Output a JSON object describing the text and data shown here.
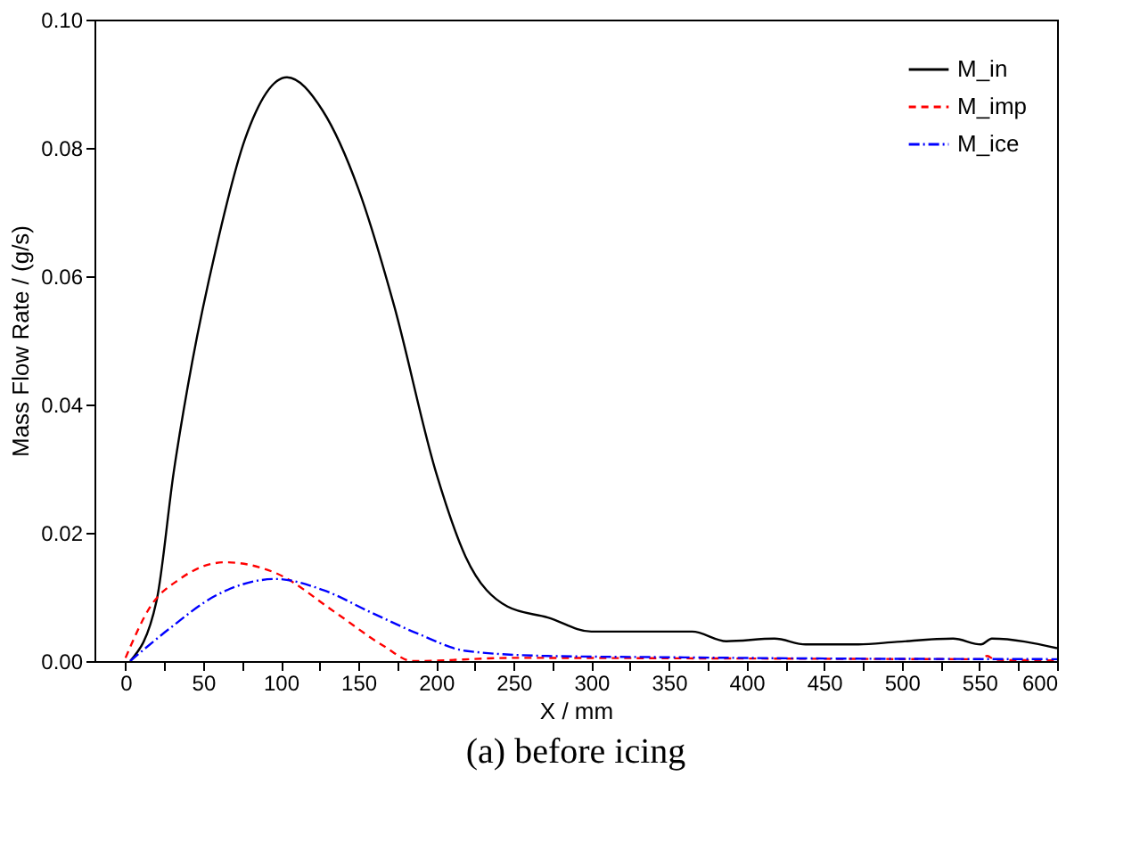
{
  "chart_data": {
    "type": "line",
    "xlabel": "X / mm",
    "ylabel": "Mass Flow Rate / (g/s)",
    "annotations": [
      "(a) before icing"
    ],
    "xlim": [
      -20,
      600
    ],
    "ylim": [
      0,
      0.1
    ],
    "xticks": [
      0,
      {
        "value": 25,
        "label": null
      },
      50,
      {
        "value": 75,
        "label": null
      },
      100,
      {
        "value": 125,
        "label": null
      },
      150,
      {
        "value": 175,
        "label": null
      },
      200,
      {
        "value": 225,
        "label": null
      },
      250,
      {
        "value": 275,
        "label": null
      },
      300,
      {
        "value": 325,
        "label": null
      },
      350,
      {
        "value": 375,
        "label": null
      },
      400,
      {
        "value": 425,
        "label": null
      },
      450,
      {
        "value": 475,
        "label": null
      },
      500,
      {
        "value": 525,
        "label": null
      },
      550,
      {
        "value": 575,
        "label": null
      },
      600
    ],
    "yticks": [
      {
        "value": 0,
        "label": "0.00"
      },
      {
        "value": 0.02,
        "label": "0.02"
      },
      {
        "value": 0.04,
        "label": "0.04"
      },
      {
        "value": 0.06,
        "label": "0.06"
      },
      {
        "value": 0.08,
        "label": "0.08"
      },
      {
        "value": 0.1,
        "label": "0.10"
      }
    ],
    "grid": false,
    "legend": "top right",
    "marker": "none",
    "series": [
      {
        "name": "M_in",
        "color": "#000000",
        "line_style": "solid",
        "x": [
          3,
          20,
          31,
          43,
          58,
          77,
          104,
          127,
          150,
          173,
          200,
          219,
          246,
          272,
          300,
          365,
          387,
          418,
          438,
          472,
          497,
          533,
          551,
          558,
          600
        ],
        "values": [
          0,
          0.0094,
          0.0294,
          0.0467,
          0.064,
          0.0814,
          0.091,
          0.0858,
          0.0736,
          0.0554,
          0.0294,
          0.0163,
          0.0085,
          0.0068,
          0.0046,
          0.0046,
          0.0031,
          0.0035,
          0.0026,
          0.0026,
          0.003,
          0.0035,
          0.0026,
          0.0035,
          0.002
        ]
      },
      {
        "name": "M_imp",
        "color": "#ff0000",
        "line_style": "dashed",
        "x": [
          0,
          16,
          35,
          64,
          97,
          135,
          166,
          185,
          250,
          400,
          550,
          555,
          560,
          600
        ],
        "values": [
          0.0005,
          0.0085,
          0.0128,
          0.0154,
          0.0137,
          0.0076,
          0.0024,
          0,
          0.0005,
          0.0004,
          0.0003,
          0.0008,
          0.0002,
          0.0001
        ]
      },
      {
        "name": "M_ice",
        "color": "#0000ff",
        "line_style": "dotted",
        "x": [
          3,
          28,
          58,
          97,
          127,
          158,
          189,
          219,
          272,
          350,
          450,
          600
        ],
        "values": [
          0,
          0.005,
          0.0102,
          0.0128,
          0.0111,
          0.0076,
          0.0042,
          0.0016,
          0.0008,
          0.0006,
          0.0004,
          0.0003
        ]
      }
    ]
  }
}
